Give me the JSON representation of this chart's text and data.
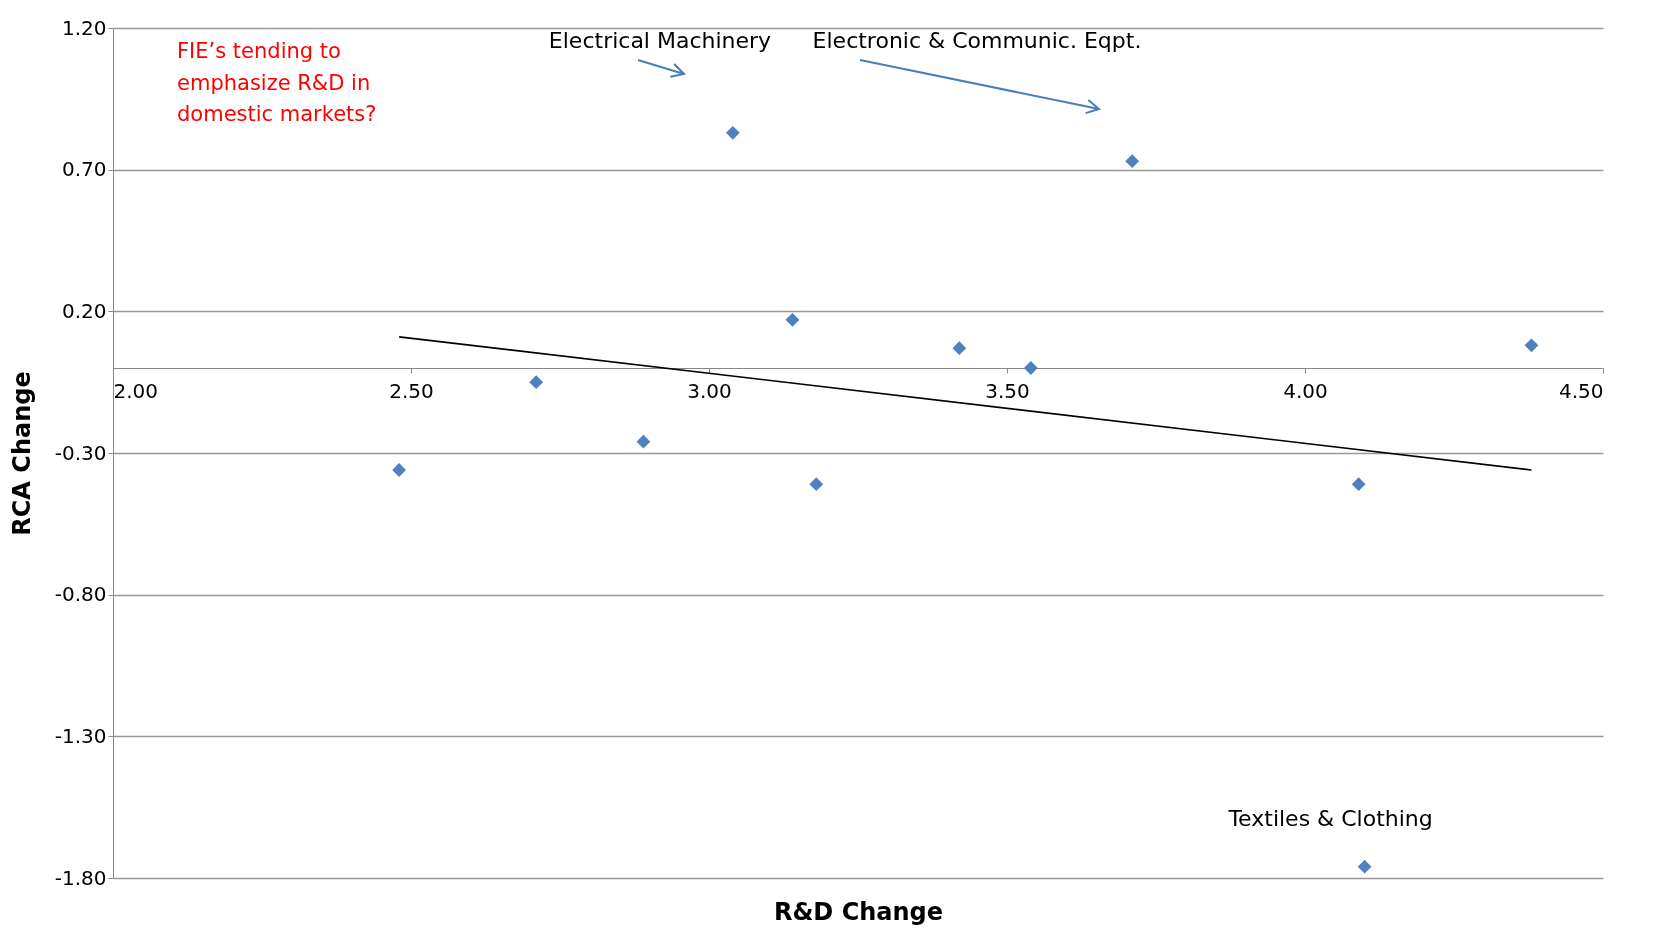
{
  "chart_data": {
    "type": "scatter",
    "xlabel": "R&D Change",
    "ylabel": "RCA Change",
    "xlim": [
      2,
      4.5
    ],
    "ylim": [
      -1.8,
      1.2
    ],
    "xticks": [
      {
        "value": 2,
        "label": "2.00"
      },
      {
        "value": 2.5,
        "label": "2.50"
      },
      {
        "value": 3,
        "label": "3.00"
      },
      {
        "value": 3.5,
        "label": "3.50"
      },
      {
        "value": 4,
        "label": "4.00"
      },
      {
        "value": 4.5,
        "label": "4.50"
      }
    ],
    "yticks": [
      {
        "value": 1.2,
        "label": "1.20"
      },
      {
        "value": 0.7,
        "label": "0.70"
      },
      {
        "value": 0.2,
        "label": "0.20"
      },
      {
        "value": -0.3,
        "label": "-0.30"
      },
      {
        "value": -0.8,
        "label": "-0.80"
      },
      {
        "value": -1.3,
        "label": "-1.30"
      },
      {
        "value": -1.8,
        "label": "-1.80"
      }
    ],
    "grid": "y",
    "series": [
      {
        "type": "scatter",
        "marker": "diamond",
        "color": "#4f81bd",
        "x": [
          2.48,
          2.71,
          2.89,
          3.04,
          3.14,
          3.18,
          3.42,
          3.54,
          3.71,
          4.09,
          4.38,
          4.1
        ],
        "values": [
          -0.36,
          -0.05,
          -0.26,
          0.83,
          0.17,
          -0.41,
          0.07,
          0.0,
          0.73,
          -0.41,
          0.08,
          -1.76
        ]
      },
      {
        "type": "line",
        "color": "#000000",
        "x": [
          2.48,
          4.38
        ],
        "values": [
          0.11,
          -0.36
        ]
      }
    ],
    "annotations": [
      "FIE’s tending to emphasize R&D in domestic markets?",
      "Electrical Machinery",
      "Electronic & Communic. Eqpt.",
      {
        "text": "Textiles & Clothing",
        "x": 4.1,
        "y": -1.76
      }
    ]
  }
}
